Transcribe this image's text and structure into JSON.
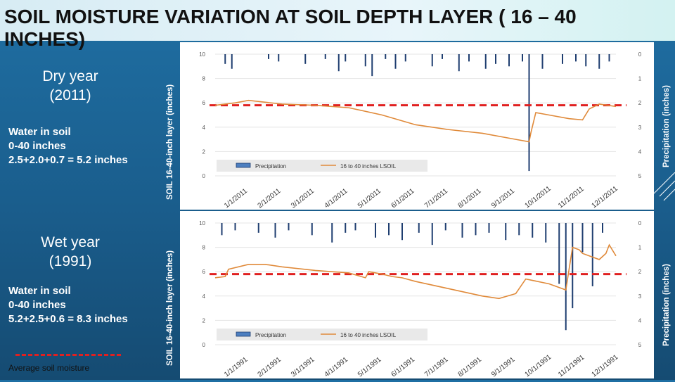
{
  "title": "SOIL MOISTURE VARIATION AT SOIL DEPTH LAYER ( 16 – 40 INCHES)",
  "dry": {
    "label_line1": "Dry year",
    "label_line2": "(2011)",
    "water_line1": "Water in soil",
    "water_line2": "0-40 inches",
    "water_line3": "2.5+2.0+0.7 = 5.2 inches"
  },
  "wet": {
    "label_line1": "Wet year",
    "label_line2": "(1991)",
    "water_line1": "Water in soil",
    "water_line2": "0-40 inches",
    "water_line3": "5.2+2.5+0.6 = 8.3 inches"
  },
  "legend_avg": "Average soil moisture",
  "left_axis_label": "SOIL 16-40-inch layer (inches)",
  "right_axis_label": "Precipitation (inches)",
  "colors": {
    "soil": "#e08a3a",
    "precip": "#1f3e70",
    "avg": "#e02020"
  },
  "chart_data": [
    {
      "type": "line",
      "title": "",
      "year": 2011,
      "x_tick_labels": [
        "1/1/2011",
        "2/1/2011",
        "3/1/2011",
        "4/1/2011",
        "5/1/2011",
        "6/1/2011",
        "7/1/2011",
        "8/1/2011",
        "9/1/2011",
        "10/1/2011",
        "11/1/2011",
        "12/1/2011"
      ],
      "ylim_left": [
        0,
        10
      ],
      "y_ticks_left": [
        "0",
        "2",
        "4",
        "6",
        "8",
        "10"
      ],
      "ylim_right_reversed": [
        0,
        5
      ],
      "y_ticks_right": [
        "0",
        "1",
        "2",
        "3",
        "4",
        "5"
      ],
      "legend": [
        "Precipitation",
        "16 to 40 inches LSOIL"
      ],
      "average_line": 5.8,
      "soil_series": {
        "name": "16 to 40 inches LSOIL",
        "months": [
          0.0,
          0.6,
          1.0,
          2.0,
          3.0,
          4.0,
          5.0,
          6.0,
          7.0,
          8.0,
          9.0,
          9.4,
          9.45,
          9.6,
          10.0,
          10.6,
          11.0,
          11.2,
          11.5,
          12.0
        ],
        "values": [
          5.8,
          6.0,
          6.2,
          5.9,
          5.8,
          5.6,
          5.0,
          4.2,
          3.8,
          3.5,
          3.0,
          2.8,
          3.5,
          5.2,
          5.0,
          4.7,
          4.6,
          5.5,
          5.9,
          5.7
        ]
      },
      "precip_series": {
        "name": "Precipitation",
        "months": [
          0.3,
          0.5,
          1.6,
          1.9,
          2.7,
          3.3,
          3.7,
          3.9,
          4.5,
          4.7,
          5.1,
          5.4,
          5.7,
          6.5,
          6.8,
          7.3,
          7.6,
          8.1,
          8.4,
          8.8,
          9.2,
          9.4,
          9.8,
          10.4,
          10.8,
          11.1,
          11.5,
          11.8
        ],
        "values": [
          0.4,
          0.6,
          0.2,
          0.3,
          0.4,
          0.2,
          0.7,
          0.3,
          0.5,
          0.9,
          0.2,
          0.6,
          0.3,
          0.5,
          0.2,
          0.7,
          0.3,
          0.6,
          0.4,
          0.5,
          0.3,
          4.8,
          0.6,
          0.4,
          0.3,
          0.5,
          0.6,
          0.3
        ]
      }
    },
    {
      "type": "line",
      "title": "",
      "year": 1991,
      "x_tick_labels": [
        "1/1/1991",
        "2/1/1991",
        "3/1/1991",
        "4/1/1991",
        "5/1/1991",
        "6/1/1991",
        "7/1/1991",
        "8/1/1991",
        "9/1/1991",
        "10/1/1991",
        "11/1/1991",
        "12/1/1991"
      ],
      "ylim_left": [
        0,
        10
      ],
      "y_ticks_left": [
        "0",
        "2",
        "4",
        "6",
        "8",
        "10"
      ],
      "ylim_right_reversed": [
        0,
        5
      ],
      "y_ticks_right": [
        "0",
        "1",
        "2",
        "3",
        "4",
        "5"
      ],
      "legend": [
        "Precipitation",
        "16 to 40 inches LSOIL"
      ],
      "average_line": 5.8,
      "soil_series": {
        "name": "16 to 40 inches LSOIL",
        "months": [
          0.0,
          0.3,
          0.4,
          1.0,
          1.5,
          2.0,
          3.0,
          4.0,
          4.5,
          4.6,
          5.0,
          5.3,
          5.6,
          6.0,
          7.0,
          8.0,
          8.5,
          9.0,
          9.3,
          10.0,
          10.5,
          10.7,
          10.9,
          11.0,
          11.5,
          11.7,
          11.8,
          12.0
        ],
        "values": [
          5.5,
          5.6,
          6.2,
          6.6,
          6.6,
          6.4,
          6.1,
          5.9,
          5.5,
          6.0,
          5.8,
          5.6,
          5.5,
          5.2,
          4.6,
          4.0,
          3.8,
          4.2,
          5.4,
          5.0,
          4.5,
          8.0,
          7.8,
          7.5,
          7.0,
          7.5,
          8.2,
          7.3
        ]
      },
      "precip_series": {
        "name": "Precipitation",
        "months": [
          0.2,
          0.6,
          1.3,
          1.8,
          2.2,
          2.9,
          3.5,
          3.9,
          4.2,
          4.8,
          5.2,
          5.6,
          6.1,
          6.5,
          6.9,
          7.4,
          7.8,
          8.2,
          8.7,
          9.1,
          9.5,
          9.9,
          10.3,
          10.5,
          10.7,
          11.0,
          11.3,
          11.6
        ],
        "values": [
          0.5,
          0.3,
          0.4,
          0.6,
          0.3,
          0.5,
          0.8,
          0.4,
          0.3,
          0.6,
          0.5,
          0.7,
          0.4,
          0.9,
          0.3,
          0.6,
          0.5,
          0.4,
          0.7,
          0.5,
          0.6,
          0.8,
          2.5,
          4.4,
          3.5,
          1.2,
          2.6,
          0.4
        ]
      }
    }
  ]
}
